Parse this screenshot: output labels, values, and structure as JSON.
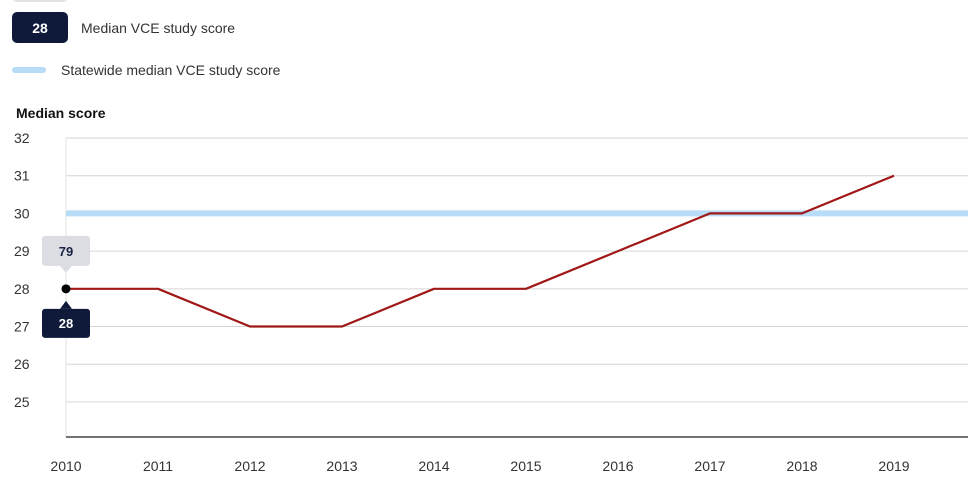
{
  "legend": {
    "median_badge": "28",
    "median_label": "Median VCE study score",
    "statewide_label": "Statewide median VCE study score"
  },
  "tooltip": {
    "top_value": "79",
    "bottom_value": "28"
  },
  "colors": {
    "series_line": "#a01818",
    "statewide_line": "#b9dcf6",
    "badge_bg": "#0f1a3a",
    "tooltip_top_bg": "#dcdde3",
    "grid": "#d6d6d6"
  },
  "chart_data": {
    "type": "line",
    "ylabel": "Median score",
    "xlabel": "",
    "x": [
      "2010",
      "2011",
      "2012",
      "2013",
      "2014",
      "2015",
      "2016",
      "2017",
      "2018",
      "2019"
    ],
    "series": [
      {
        "name": "Median VCE study score",
        "values": [
          28,
          28,
          27,
          27,
          28,
          28,
          29,
          30,
          30,
          31
        ]
      },
      {
        "name": "Statewide median VCE study score",
        "values": [
          30,
          30,
          30,
          30,
          30,
          30,
          30,
          30,
          30,
          30
        ]
      }
    ],
    "yticks": [
      25,
      26,
      27,
      28,
      29,
      30,
      31,
      32
    ],
    "ylim": [
      24.07,
      32
    ],
    "grid": true,
    "legend_position": "top-left",
    "highlighted_index": 0
  }
}
